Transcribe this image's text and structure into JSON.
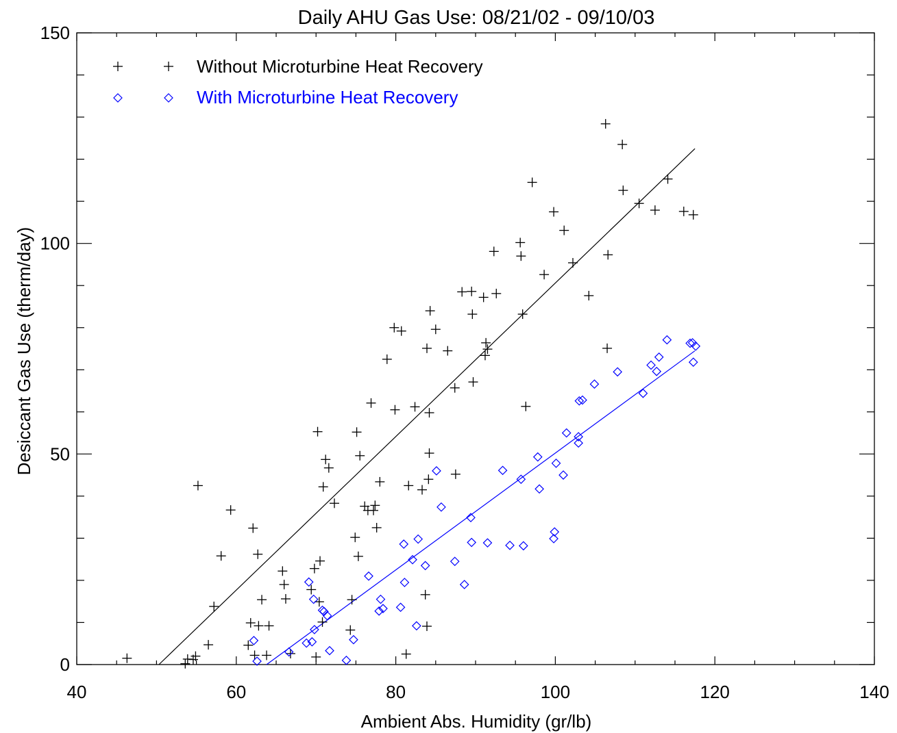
{
  "chart_data": {
    "type": "scatter",
    "title": "Daily AHU Gas Use: 08/21/02 - 09/10/03",
    "xlabel": "Ambient Abs. Humidity (gr/lb)",
    "ylabel": "Desiccant Gas Use (therm/day)",
    "xlim": [
      40,
      140
    ],
    "ylim": [
      0,
      150
    ],
    "x_ticks": [
      40,
      60,
      80,
      100,
      120,
      140
    ],
    "x_tick_labels": [
      "40",
      "60",
      "80",
      "100",
      "120",
      "140"
    ],
    "y_ticks": [
      0,
      50,
      100,
      150
    ],
    "y_tick_labels": [
      "0",
      "50",
      "100",
      "150"
    ],
    "grid": false,
    "legend_position": "top-left",
    "series": [
      {
        "name": "Without Microturbine Heat Recovery",
        "marker": "plus",
        "color": "#000000",
        "fit_line": [
          [
            50.3,
            0
          ],
          [
            117.5,
            122.5
          ]
        ],
        "points": [
          [
            46.3,
            1.5
          ],
          [
            53.6,
            0.2
          ],
          [
            53.9,
            1.3
          ],
          [
            54.6,
            1.2
          ],
          [
            54.9,
            2.0
          ],
          [
            55.2,
            42.5
          ],
          [
            56.5,
            4.7
          ],
          [
            57.2,
            13.8
          ],
          [
            58.1,
            25.8
          ],
          [
            59.3,
            36.7
          ],
          [
            61.5,
            4.6
          ],
          [
            61.8,
            9.9
          ],
          [
            62.1,
            32.4
          ],
          [
            62.3,
            2.2
          ],
          [
            62.7,
            26.2
          ],
          [
            62.8,
            9.2
          ],
          [
            63.2,
            15.4
          ],
          [
            63.8,
            2.2
          ],
          [
            64.1,
            9.2
          ],
          [
            65.8,
            22.2
          ],
          [
            66.0,
            19.0
          ],
          [
            66.2,
            15.6
          ],
          [
            66.8,
            2.6
          ],
          [
            69.4,
            17.8
          ],
          [
            69.8,
            22.8
          ],
          [
            70.0,
            1.8
          ],
          [
            70.2,
            55.3
          ],
          [
            70.4,
            14.9
          ],
          [
            70.5,
            24.6
          ],
          [
            70.8,
            10.1
          ],
          [
            70.9,
            42.2
          ],
          [
            71.2,
            48.7
          ],
          [
            71.6,
            46.7
          ],
          [
            72.3,
            38.3
          ],
          [
            74.3,
            8.2
          ],
          [
            74.5,
            15.4
          ],
          [
            74.9,
            30.2
          ],
          [
            75.1,
            55.2
          ],
          [
            75.3,
            25.7
          ],
          [
            75.5,
            49.6
          ],
          [
            76.1,
            37.6
          ],
          [
            76.5,
            36.6
          ],
          [
            76.9,
            62.1
          ],
          [
            77.2,
            36.6
          ],
          [
            77.4,
            37.8
          ],
          [
            77.6,
            32.5
          ],
          [
            78.0,
            43.4
          ],
          [
            78.9,
            72.5
          ],
          [
            79.8,
            80.0
          ],
          [
            79.9,
            60.5
          ],
          [
            80.7,
            79.2
          ],
          [
            81.3,
            2.5
          ],
          [
            81.6,
            42.5
          ],
          [
            82.4,
            61.2
          ],
          [
            83.3,
            41.5
          ],
          [
            83.7,
            16.6
          ],
          [
            83.9,
            75.1
          ],
          [
            83.9,
            9.1
          ],
          [
            84.2,
            50.2
          ],
          [
            84.2,
            59.8
          ],
          [
            84.3,
            84.0
          ],
          [
            84.1,
            44.0
          ],
          [
            85.0,
            79.6
          ],
          [
            86.5,
            74.5
          ],
          [
            87.4,
            65.7
          ],
          [
            87.5,
            45.2
          ],
          [
            88.3,
            88.5
          ],
          [
            89.5,
            88.6
          ],
          [
            89.6,
            83.2
          ],
          [
            89.7,
            67.1
          ],
          [
            91.0,
            87.2
          ],
          [
            91.2,
            73.4
          ],
          [
            91.3,
            76.4
          ],
          [
            91.5,
            74.9
          ],
          [
            92.3,
            98.1
          ],
          [
            92.6,
            88.1
          ],
          [
            95.6,
            100.2
          ],
          [
            95.7,
            97.0
          ],
          [
            95.9,
            83.2
          ],
          [
            96.3,
            61.3
          ],
          [
            97.1,
            114.5
          ],
          [
            98.6,
            92.6
          ],
          [
            99.8,
            107.5
          ],
          [
            101.1,
            103.1
          ],
          [
            102.2,
            95.4
          ],
          [
            104.2,
            87.6
          ],
          [
            106.3,
            128.4
          ],
          [
            106.6,
            97.3
          ],
          [
            106.5,
            75.1
          ],
          [
            108.4,
            123.5
          ],
          [
            108.5,
            112.6
          ],
          [
            110.5,
            109.5
          ],
          [
            112.5,
            107.9
          ],
          [
            114.1,
            115.3
          ],
          [
            116.1,
            107.6
          ],
          [
            117.3,
            106.8
          ]
        ]
      },
      {
        "name": "With Microturbine Heat Recovery",
        "marker": "diamond",
        "color": "#0000ff",
        "fit_line": [
          [
            63.8,
            0
          ],
          [
            117.5,
            74.5
          ]
        ],
        "points": [
          [
            62.2,
            5.7
          ],
          [
            62.6,
            0.8
          ],
          [
            66.6,
            3.0
          ],
          [
            68.8,
            5.1
          ],
          [
            69.1,
            19.6
          ],
          [
            69.5,
            5.4
          ],
          [
            69.7,
            15.5
          ],
          [
            69.8,
            8.3
          ],
          [
            70.8,
            12.9
          ],
          [
            71.0,
            12.6
          ],
          [
            71.4,
            11.6
          ],
          [
            71.7,
            3.3
          ],
          [
            73.8,
            1.0
          ],
          [
            74.7,
            5.9
          ],
          [
            76.6,
            21.0
          ],
          [
            77.9,
            12.7
          ],
          [
            78.1,
            15.5
          ],
          [
            78.4,
            13.3
          ],
          [
            80.6,
            13.6
          ],
          [
            81.0,
            28.6
          ],
          [
            81.1,
            19.5
          ],
          [
            82.1,
            24.9
          ],
          [
            82.6,
            9.2
          ],
          [
            82.8,
            29.8
          ],
          [
            83.7,
            23.5
          ],
          [
            85.1,
            46.0
          ],
          [
            85.7,
            37.4
          ],
          [
            87.4,
            24.5
          ],
          [
            88.6,
            19.0
          ],
          [
            89.4,
            34.9
          ],
          [
            89.5,
            29.0
          ],
          [
            91.5,
            28.9
          ],
          [
            93.4,
            46.1
          ],
          [
            94.3,
            28.3
          ],
          [
            95.7,
            44.0
          ],
          [
            96.0,
            28.2
          ],
          [
            97.8,
            49.3
          ],
          [
            98.0,
            41.7
          ],
          [
            99.8,
            29.9
          ],
          [
            99.9,
            31.5
          ],
          [
            100.1,
            47.8
          ],
          [
            101.0,
            45.0
          ],
          [
            101.4,
            55.0
          ],
          [
            102.9,
            52.6
          ],
          [
            102.9,
            54.1
          ],
          [
            103.0,
            62.6
          ],
          [
            103.4,
            62.8
          ],
          [
            104.9,
            66.6
          ],
          [
            107.8,
            69.5
          ],
          [
            111.0,
            64.4
          ],
          [
            112.0,
            71.1
          ],
          [
            112.7,
            69.6
          ],
          [
            113.0,
            73.0
          ],
          [
            114.0,
            77.1
          ],
          [
            116.9,
            76.3
          ],
          [
            117.2,
            76.4
          ],
          [
            117.3,
            71.8
          ],
          [
            117.6,
            75.6
          ]
        ]
      }
    ]
  }
}
